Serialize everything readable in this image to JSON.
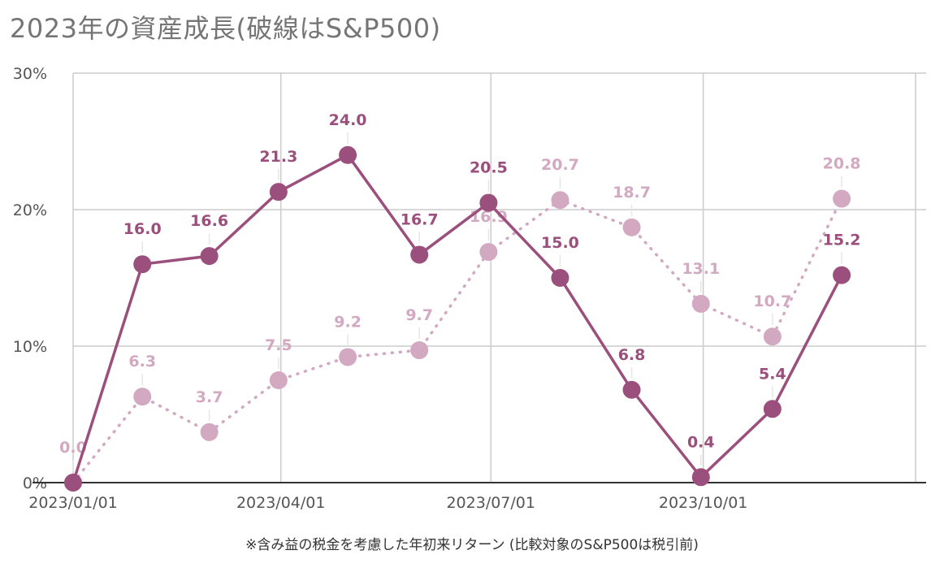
{
  "title": "2023年の資産成長(破線はS&P500)",
  "footnote": "※含み益の税金を考慮した年初来リターン (比較対象のS&P500は税引前)",
  "colors": {
    "primary": "#9b4f7c",
    "secondary": "#d3a9c2",
    "grid": "#cccccc",
    "axis": "#333333",
    "text": "#757575"
  },
  "chart_data": {
    "type": "line",
    "title": "2023年の資産成長(破線はS&P500)",
    "x_tick_labels": [
      "2023/01/01",
      "2023/04/01",
      "2023/07/01",
      "2023/10/01"
    ],
    "y_tick_labels": [
      "0%",
      "10%",
      "20%",
      "30%"
    ],
    "ylim": [
      0,
      30
    ],
    "xlim": [
      "2023-01-01",
      "2024-01-01"
    ],
    "grid": true,
    "x": [
      "2023-01-01",
      "2023-01-31",
      "2023-03-01",
      "2023-03-31",
      "2023-04-30",
      "2023-05-31",
      "2023-06-30",
      "2023-07-31",
      "2023-08-31",
      "2023-09-30",
      "2023-10-31",
      "2023-11-30"
    ],
    "series": [
      {
        "style": "solid",
        "values": [
          0.0,
          16.0,
          16.6,
          21.3,
          24.0,
          16.7,
          20.5,
          15.0,
          6.8,
          0.4,
          5.4,
          15.2
        ],
        "labels": [
          "",
          "16.0",
          "16.6",
          "21.3",
          "24.0",
          "16.7",
          "20.5",
          "15.0",
          "6.8",
          "0.4",
          "5.4",
          "15.2"
        ]
      },
      {
        "style": "dotted",
        "values": [
          0.0,
          6.3,
          3.7,
          7.5,
          9.2,
          9.7,
          16.9,
          20.7,
          18.7,
          13.1,
          10.7,
          20.8
        ],
        "labels": [
          "0.0",
          "6.3",
          "3.7",
          "7.5",
          "9.2",
          "9.7",
          "16.9",
          "20.7",
          "18.7",
          "13.1",
          "10.7",
          "20.8"
        ]
      }
    ]
  }
}
